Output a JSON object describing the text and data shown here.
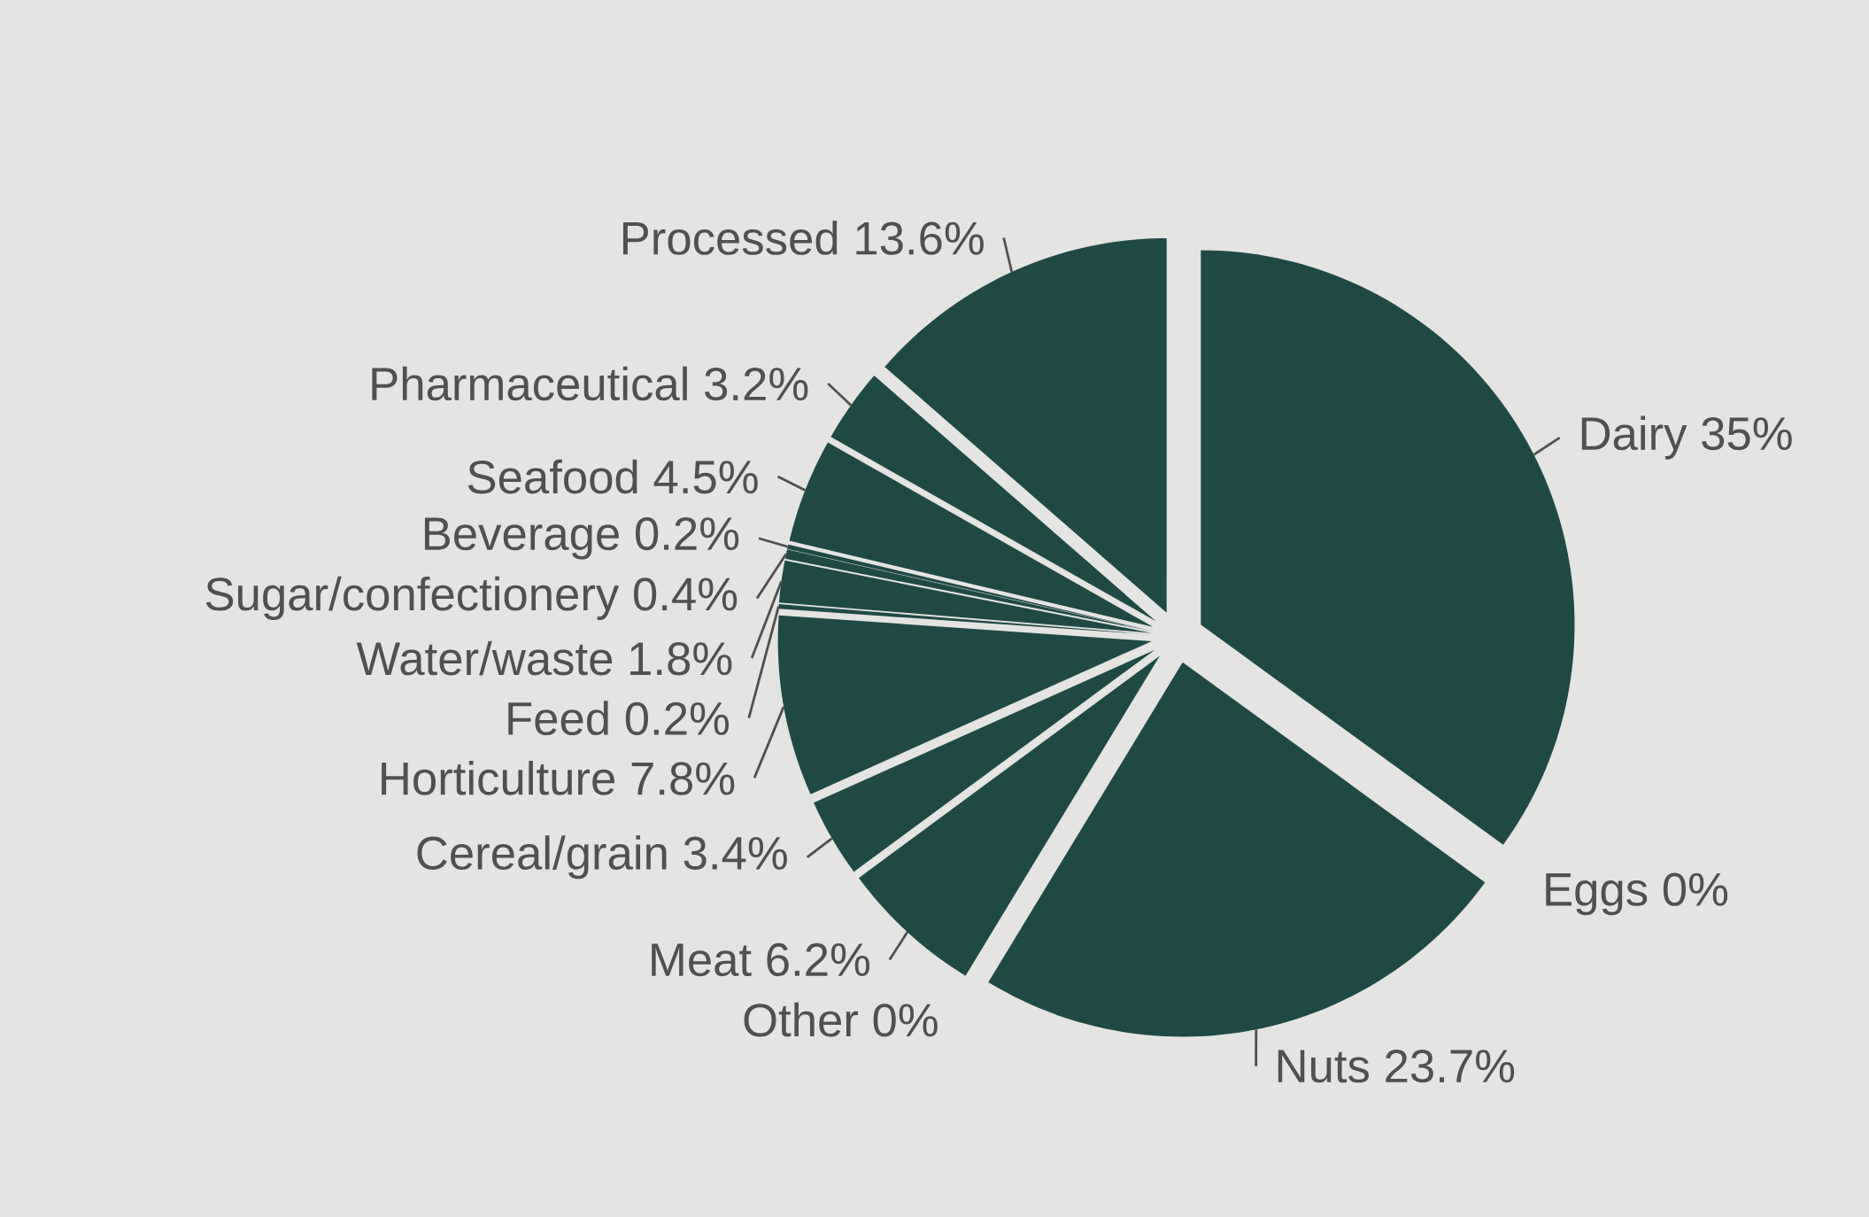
{
  "chart_data": {
    "type": "pie",
    "categories": [
      "Dairy",
      "Eggs",
      "Nuts",
      "Other",
      "Meat",
      "Cereal/grain",
      "Horticulture",
      "Feed",
      "Water/waste",
      "Sugar/confectionery",
      "Beverage",
      "Seafood",
      "Pharmaceutical",
      "Processed"
    ],
    "values": [
      35,
      0,
      23.7,
      0,
      6.2,
      3.4,
      7.8,
      0.2,
      1.8,
      0.4,
      0.2,
      4.5,
      3.2,
      13.6
    ],
    "value_labels": [
      "35%",
      "0%",
      "23.7%",
      "0%",
      "6.2%",
      "3.4%",
      "7.8%",
      "0.2%",
      "1.8%",
      "0.4%",
      "0.2%",
      "4.5%",
      "3.2%",
      "13.6%"
    ],
    "colors": [
      "#1f4a44",
      "#1f4a44",
      "#1f4a44",
      "#1f4a44",
      "#1f4a44",
      "#1f4a44",
      "#1f4a44",
      "#1f4a44",
      "#1f4a44",
      "#1f4a44",
      "#1f4a44",
      "#1f4a44",
      "#1f4a44",
      "#1f4a44"
    ]
  }
}
